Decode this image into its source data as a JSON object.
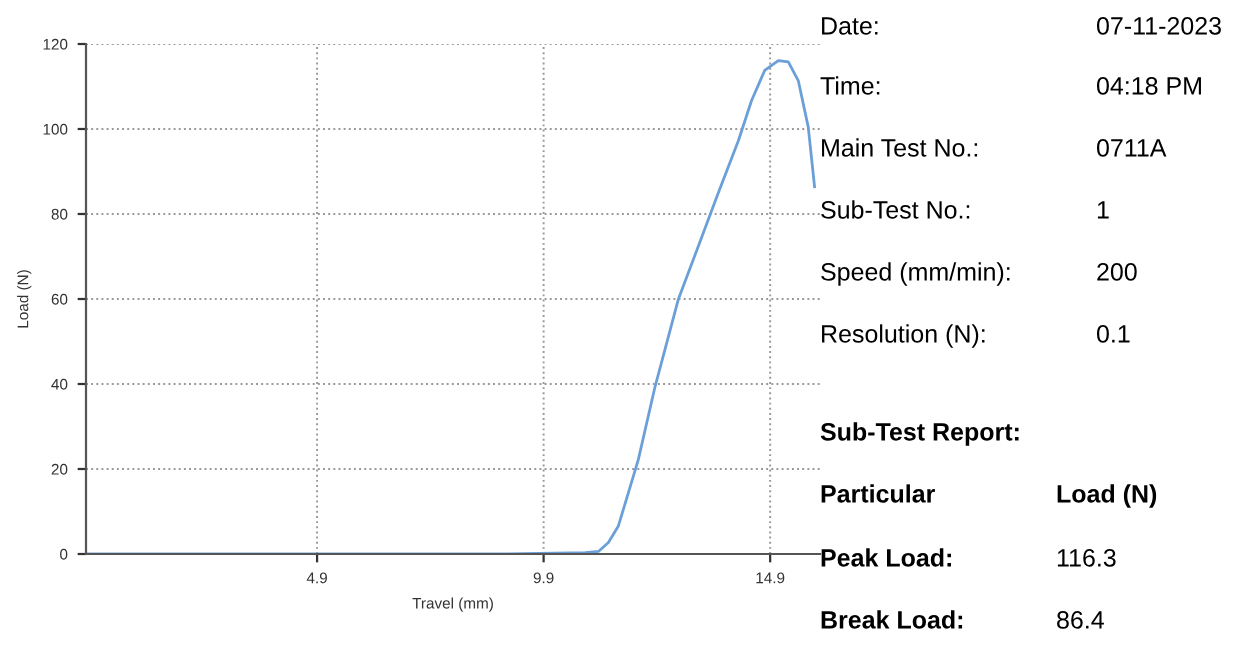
{
  "chart_data": [
    {
      "type": "line",
      "xlabel": "Travel (mm)",
      "ylabel": "Load (N)",
      "x": [
        -0.2,
        9.0,
        10.82,
        11.11,
        11.33,
        11.55,
        11.77,
        11.99,
        12.36,
        12.87,
        13.31,
        13.75,
        14.2,
        14.49,
        14.78,
        15.08,
        15.3,
        15.52,
        15.74,
        15.88
      ],
      "series": [
        {
          "color": "#6a9fd8",
          "values": [
            0,
            0,
            0.3,
            0.6,
            2.7,
            6.6,
            14.4,
            22.2,
            39.4,
            59.8,
            72.3,
            84.8,
            97.3,
            106.7,
            113.8,
            116.1,
            115.8,
            111.4,
            100.5,
            86.4
          ]
        }
      ],
      "xlim": [
        -0.2,
        16.0
      ],
      "ylim": [
        0,
        120
      ],
      "xticks": [
        4.9,
        9.9,
        14.9
      ],
      "yticks": [
        0,
        20,
        40,
        60,
        80,
        100,
        120
      ],
      "grid": true,
      "marker": "none",
      "line_style": "solid",
      "legend": false
    },
    {
      "type": "other",
      "annotations": [
        "Date:",
        "07-11-2023",
        "Time:",
        "04:18 PM",
        "Main Test No.:",
        "0711A",
        "Sub-Test No.:",
        "1",
        "Speed (mm/min):",
        "200",
        "Resolution (N):",
        "0.1",
        "Sub-Test Report:",
        "Particular",
        "Load (N)",
        "Peak Load:",
        "116.3",
        "Break Load:",
        "86.4"
      ]
    }
  ]
}
